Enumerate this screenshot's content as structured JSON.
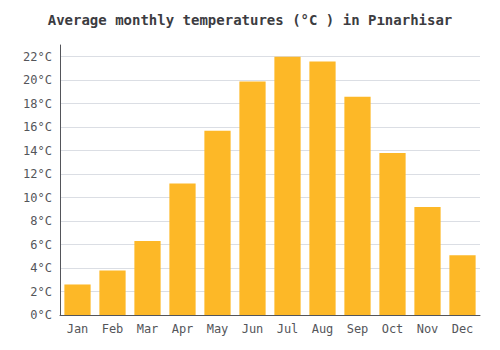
{
  "chart_data": {
    "type": "bar",
    "title": "Average monthly temperatures (°C ) in Pınarhisar",
    "categories": [
      "Jan",
      "Feb",
      "Mar",
      "Apr",
      "May",
      "Jun",
      "Jul",
      "Aug",
      "Sep",
      "Oct",
      "Nov",
      "Dec"
    ],
    "values": [
      2.6,
      3.8,
      6.3,
      11.2,
      15.7,
      19.9,
      22.0,
      21.6,
      18.6,
      13.8,
      9.2,
      5.1
    ],
    "color": "#FDB827",
    "ylim": [
      0,
      23
    ],
    "yticks": [
      {
        "value": 0,
        "label": "0°C"
      },
      {
        "value": 2,
        "label": "2°C"
      },
      {
        "value": 4,
        "label": "4°C"
      },
      {
        "value": 6,
        "label": "6°C"
      },
      {
        "value": 8,
        "label": "8°C"
      },
      {
        "value": 10,
        "label": "10°C"
      },
      {
        "value": 12,
        "label": "12°C"
      },
      {
        "value": 14,
        "label": "14°C"
      },
      {
        "value": 16,
        "label": "16°C"
      },
      {
        "value": 18,
        "label": "18°C"
      },
      {
        "value": 20,
        "label": "20°C"
      },
      {
        "value": 22,
        "label": "22°C"
      }
    ],
    "grid": true
  }
}
